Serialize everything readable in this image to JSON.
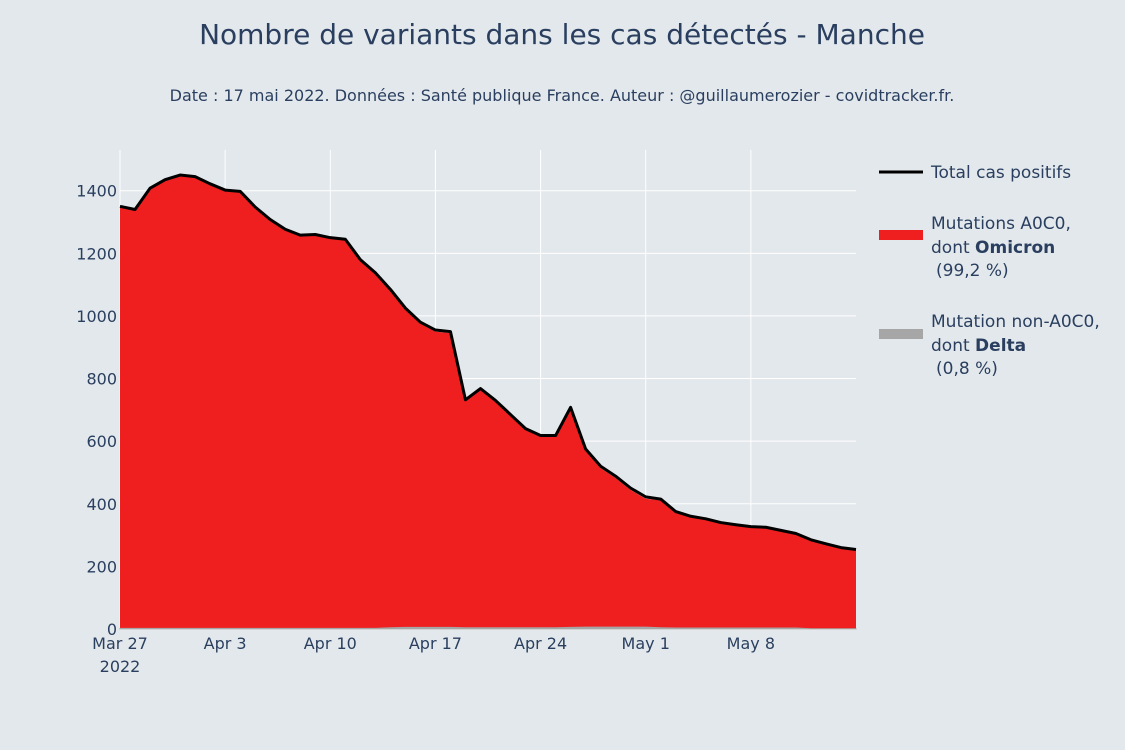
{
  "chart_data": {
    "type": "area",
    "title": "Nombre de variants dans les cas détectés - Manche",
    "subtitle": "Date : 17 mai 2022. Données : Santé publique France. Auteur : @guillaumerozier - covidtracker.fr.",
    "x_start": "2022-03-27",
    "x_end": "2022-05-15",
    "x_ticks": [
      {
        "date": "2022-03-27",
        "label": "Mar 27",
        "sublabel": "2022"
      },
      {
        "date": "2022-04-03",
        "label": "Apr 3"
      },
      {
        "date": "2022-04-10",
        "label": "Apr 10"
      },
      {
        "date": "2022-04-17",
        "label": "Apr 17"
      },
      {
        "date": "2022-04-24",
        "label": "Apr 24"
      },
      {
        "date": "2022-05-01",
        "label": "May 1"
      },
      {
        "date": "2022-05-08",
        "label": "May 8"
      }
    ],
    "ylim": [
      0,
      1530
    ],
    "y_ticks": [
      0,
      200,
      400,
      600,
      800,
      1000,
      1200,
      1400
    ],
    "grid": true,
    "legend_position": "right",
    "dates": [
      "2022-03-27",
      "2022-03-28",
      "2022-03-29",
      "2022-03-30",
      "2022-03-31",
      "2022-04-01",
      "2022-04-02",
      "2022-04-03",
      "2022-04-04",
      "2022-04-05",
      "2022-04-06",
      "2022-04-07",
      "2022-04-08",
      "2022-04-09",
      "2022-04-10",
      "2022-04-11",
      "2022-04-12",
      "2022-04-13",
      "2022-04-14",
      "2022-04-15",
      "2022-04-16",
      "2022-04-17",
      "2022-04-18",
      "2022-04-19",
      "2022-04-20",
      "2022-04-21",
      "2022-04-22",
      "2022-04-23",
      "2022-04-24",
      "2022-04-25",
      "2022-04-26",
      "2022-04-27",
      "2022-04-28",
      "2022-04-29",
      "2022-04-30",
      "2022-05-01",
      "2022-05-02",
      "2022-05-03",
      "2022-05-04",
      "2022-05-05",
      "2022-05-06",
      "2022-05-07",
      "2022-05-08",
      "2022-05-09",
      "2022-05-10",
      "2022-05-11",
      "2022-05-12",
      "2022-05-13",
      "2022-05-14",
      "2022-05-15"
    ],
    "series": [
      {
        "name": "Total cas positifs",
        "color": "#000000",
        "values": [
          1350,
          1340,
          1408,
          1435,
          1450,
          1445,
          1422,
          1402,
          1398,
          1348,
          1308,
          1277,
          1258,
          1260,
          1250,
          1245,
          1180,
          1138,
          1085,
          1025,
          980,
          955,
          950,
          732,
          768,
          730,
          685,
          640,
          618,
          618,
          708,
          575,
          520,
          488,
          450,
          422,
          415,
          375,
          360,
          352,
          340,
          333,
          327,
          325,
          315,
          305,
          285,
          272,
          260,
          254
        ]
      },
      {
        "name": "Mutations A0C0, dont Omicron (99,2 %)",
        "color": "#ef1f1f",
        "values": [
          1348,
          1338,
          1406,
          1433,
          1448,
          1443,
          1420,
          1400,
          1396,
          1346,
          1306,
          1275,
          1256,
          1258,
          1248,
          1243,
          1178,
          1136,
          1081,
          1020,
          975,
          950,
          945,
          728,
          764,
          726,
          681,
          636,
          614,
          614,
          703,
          569,
          514,
          482,
          444,
          416,
          411,
          372,
          357,
          349,
          337,
          330,
          324,
          322,
          312,
          302,
          284,
          271,
          259,
          253
        ]
      },
      {
        "name": "Mutation non-A0C0, dont Delta (0,8 %)",
        "color": "#a6a6a6",
        "values": [
          2,
          2,
          2,
          2,
          2,
          2,
          2,
          2,
          2,
          2,
          2,
          2,
          2,
          2,
          2,
          2,
          2,
          2,
          4,
          5,
          5,
          5,
          5,
          4,
          4,
          4,
          4,
          4,
          4,
          4,
          5,
          6,
          6,
          6,
          6,
          6,
          4,
          3,
          3,
          3,
          3,
          3,
          3,
          3,
          3,
          3,
          1,
          1,
          1,
          1
        ]
      }
    ]
  },
  "legend": {
    "total_label": "Total cas positifs",
    "omicron_line1": "Mutations A0C0,",
    "omicron_line2_prefix": "dont ",
    "omicron_line2_bold": "Omicron",
    "omicron_line3": "(99,2 %)",
    "delta_line1": "Mutation non-A0C0,",
    "delta_line2_prefix": "dont ",
    "delta_line2_bold": "Delta",
    "delta_line3": "(0,8 %)"
  }
}
